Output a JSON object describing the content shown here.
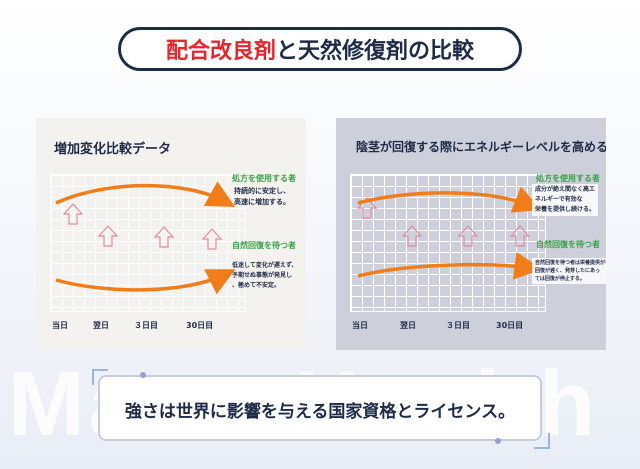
{
  "watermark": "MatsuHealth",
  "title": {
    "red_part": "配合改良剤",
    "rest": "と天然修復剤の比較"
  },
  "left_panel": {
    "title": "増加変化比較データ",
    "top_label": "処方を使用する者",
    "top_desc": [
      "持続的に安定し、",
      "高速に増加する。"
    ],
    "bottom_label": "自然回復を待つ者",
    "bottom_desc": [
      "低迷して変化が遅えず、",
      "予期せぬ事態が発見し",
      "、極めて不安定。"
    ],
    "x_labels": [
      "当日",
      "翌日",
      "３日目",
      "30日目"
    ]
  },
  "right_panel": {
    "title": "陰茎が回復する際にエネルギーレベルを高める",
    "top_label": "処方を使用する者",
    "top_desc": [
      "成分が絶え間なく高エ",
      "ネルギーで有効な",
      "栄養を提供し続ける。"
    ],
    "bottom_label": "自然回復を待つ者",
    "bottom_desc": [
      "自然回復を待つ者は栄養提供がなく",
      "回復が遅く、発芽したにあっ",
      "ては回復が停止する。"
    ],
    "x_labels": [
      "当日",
      "翌日",
      "３日目",
      "30日目"
    ]
  },
  "bottom_banner": "強さは世界に影響を与える国家資格とライセンス。",
  "colors": {
    "accent_red": "#e8252d",
    "navy": "#1f2a48",
    "orange": "#f07d1a",
    "green": "#3aa046",
    "arrow_pink": "#e38aa0"
  }
}
